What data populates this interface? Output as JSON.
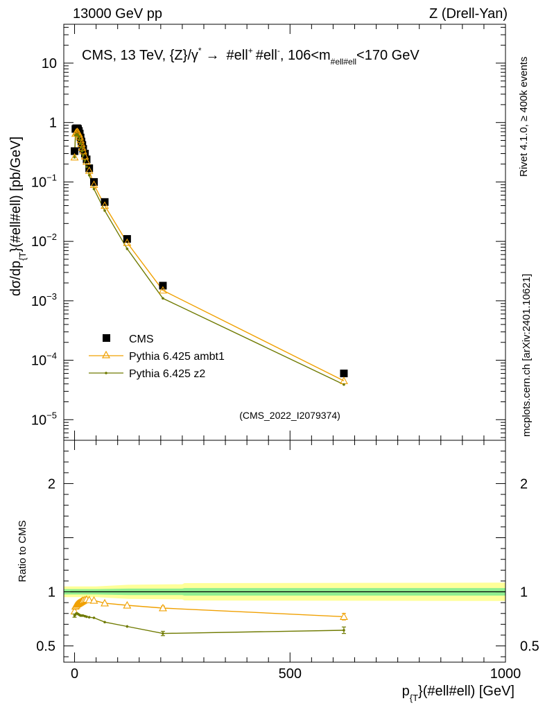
{
  "header": {
    "left": "13000 GeV pp",
    "right": "Z (Drell-Yan)"
  },
  "side": {
    "rivet": "Rivet 4.1.0, ≥ 400k events",
    "mcplots": "mcplots.cern.ch [arXiv:2401.10621]"
  },
  "colors": {
    "cms": "#000000",
    "ambt1": "#f0a000",
    "z2": "#6f7a00",
    "band_inner": "#90ee90",
    "band_outer": "#ffff99"
  },
  "chart_data": [
    {
      "type": "scatter",
      "panel": "main",
      "title": "CMS, 13 TeV, {Z}/γ* → #ell⁺ #ell⁻, 106<m_{#ell#ell}<170 GeV",
      "title_parts": {
        "pre": "CMS, 13 TeV, {Z}/γ",
        "star": "*",
        "arrow": "→",
        "ell1": "#ell",
        "plus": "+",
        "ell2": "#ell",
        "minus": "-",
        "mid": ", 106<m",
        "sub": "#ell#ell",
        "post": "<170 GeV"
      },
      "ylabel": "dσ/dp_{T}(#ell#ell) [pb/GeV]",
      "ylabel_parts": {
        "a": "dσ/dp",
        "sub": "{T",
        "b": "}(#ell#ell) [pb/GeV]"
      },
      "yscale": "log",
      "ylim": [
        4.5e-06,
        45
      ],
      "xlim": [
        -25,
        1000
      ],
      "yticks": [
        {
          "v": 10,
          "label": "10",
          "exp": ""
        },
        {
          "v": 1,
          "label": "1",
          "exp": ""
        },
        {
          "v": 0.1,
          "label": "10",
          "exp": "−1"
        },
        {
          "v": 0.01,
          "label": "10",
          "exp": "−2"
        },
        {
          "v": 0.001,
          "label": "10",
          "exp": "−3"
        },
        {
          "v": 0.0001,
          "label": "10",
          "exp": "−4"
        },
        {
          "v": 1e-05,
          "label": "10",
          "exp": "−5"
        }
      ],
      "watermark": "(CMS_2022_I2079374)",
      "legend_position": "lower-left",
      "series": [
        {
          "name": "CMS",
          "style": "square",
          "x": [
            0,
            2,
            4,
            6,
            8,
            10,
            12,
            14,
            16,
            18,
            20,
            24,
            28,
            34,
            45,
            70,
            122,
            205,
            625
          ],
          "y": [
            0.33,
            0.78,
            0.8,
            0.8,
            0.78,
            0.72,
            0.65,
            0.56,
            0.48,
            0.42,
            0.36,
            0.3,
            0.24,
            0.17,
            0.1,
            0.046,
            0.011,
            0.0018,
            6e-05
          ]
        },
        {
          "name": "Pythia 6.425 ambt1",
          "style": "triangle-line",
          "x": [
            0,
            2,
            4,
            6,
            8,
            10,
            12,
            14,
            16,
            18,
            20,
            24,
            28,
            34,
            45,
            70,
            122,
            205,
            625
          ],
          "y": [
            0.26,
            0.65,
            0.68,
            0.7,
            0.68,
            0.64,
            0.58,
            0.51,
            0.44,
            0.38,
            0.33,
            0.27,
            0.22,
            0.155,
            0.09,
            0.04,
            0.0095,
            0.0015,
            4.5e-05
          ]
        },
        {
          "name": "Pythia 6.425 z2",
          "style": "dot-line",
          "x": [
            0,
            2,
            4,
            6,
            8,
            10,
            12,
            14,
            16,
            18,
            20,
            24,
            28,
            34,
            45,
            70,
            122,
            205,
            625
          ],
          "y": [
            0.26,
            0.61,
            0.62,
            0.63,
            0.61,
            0.57,
            0.51,
            0.44,
            0.38,
            0.33,
            0.28,
            0.23,
            0.18,
            0.13,
            0.076,
            0.033,
            0.0075,
            0.0011,
            3.9e-05
          ]
        }
      ]
    },
    {
      "type": "line",
      "panel": "ratio",
      "ylabel": "Ratio to CMS",
      "xlabel": "p_{T}(#ell#ell) [GeV]",
      "xlabel_parts": {
        "a": "p",
        "sub": "{T",
        "b": "}(#ell#ell) [GeV]"
      },
      "ylim": [
        0.35,
        2.4
      ],
      "xlim": [
        -25,
        1000
      ],
      "yticks": [
        0.5,
        1,
        2
      ],
      "ytick_labels": [
        "0.5",
        "1",
        "2"
      ],
      "xticks": [
        0,
        500,
        1000
      ],
      "xtick_labels": [
        "0",
        "500",
        "1000"
      ],
      "series": [
        {
          "name": "Pythia 6.425 ambt1",
          "x": [
            0,
            2,
            4,
            6,
            8,
            10,
            12,
            14,
            16,
            18,
            20,
            24,
            28,
            34,
            45,
            70,
            122,
            205,
            625
          ],
          "y": [
            0.82,
            0.865,
            0.875,
            0.885,
            0.89,
            0.895,
            0.9,
            0.905,
            0.91,
            0.915,
            0.92,
            0.925,
            0.93,
            0.925,
            0.92,
            0.895,
            0.875,
            0.85,
            0.77
          ],
          "err": [
            0.02,
            0.01,
            0.01,
            0.01,
            0.01,
            0.01,
            0.01,
            0.01,
            0.01,
            0.01,
            0.01,
            0.01,
            0.01,
            0.01,
            0.012,
            0.013,
            0.014,
            0.018,
            0.03
          ]
        },
        {
          "name": "Pythia 6.425 z2",
          "x": [
            0,
            2,
            4,
            6,
            8,
            10,
            12,
            14,
            16,
            18,
            20,
            24,
            28,
            34,
            45,
            70,
            122,
            205,
            625
          ],
          "y": [
            0.78,
            0.79,
            0.8,
            0.8,
            0.795,
            0.79,
            0.785,
            0.78,
            0.78,
            0.78,
            0.78,
            0.775,
            0.77,
            0.765,
            0.76,
            0.72,
            0.68,
            0.615,
            0.645
          ],
          "err": [
            0.015,
            0.01,
            0.01,
            0.01,
            0.01,
            0.01,
            0.01,
            0.01,
            0.01,
            0.01,
            0.01,
            0.01,
            0.01,
            0.01,
            0.01,
            0.01,
            0.012,
            0.02,
            0.03
          ]
        }
      ],
      "band": {
        "x": [
          -25,
          50,
          125,
          250,
          255,
          1000
        ],
        "inner": [
          0.025,
          0.025,
          0.03,
          0.03,
          0.035,
          0.035
        ],
        "outer": [
          0.05,
          0.05,
          0.065,
          0.07,
          0.08,
          0.085
        ]
      }
    }
  ]
}
